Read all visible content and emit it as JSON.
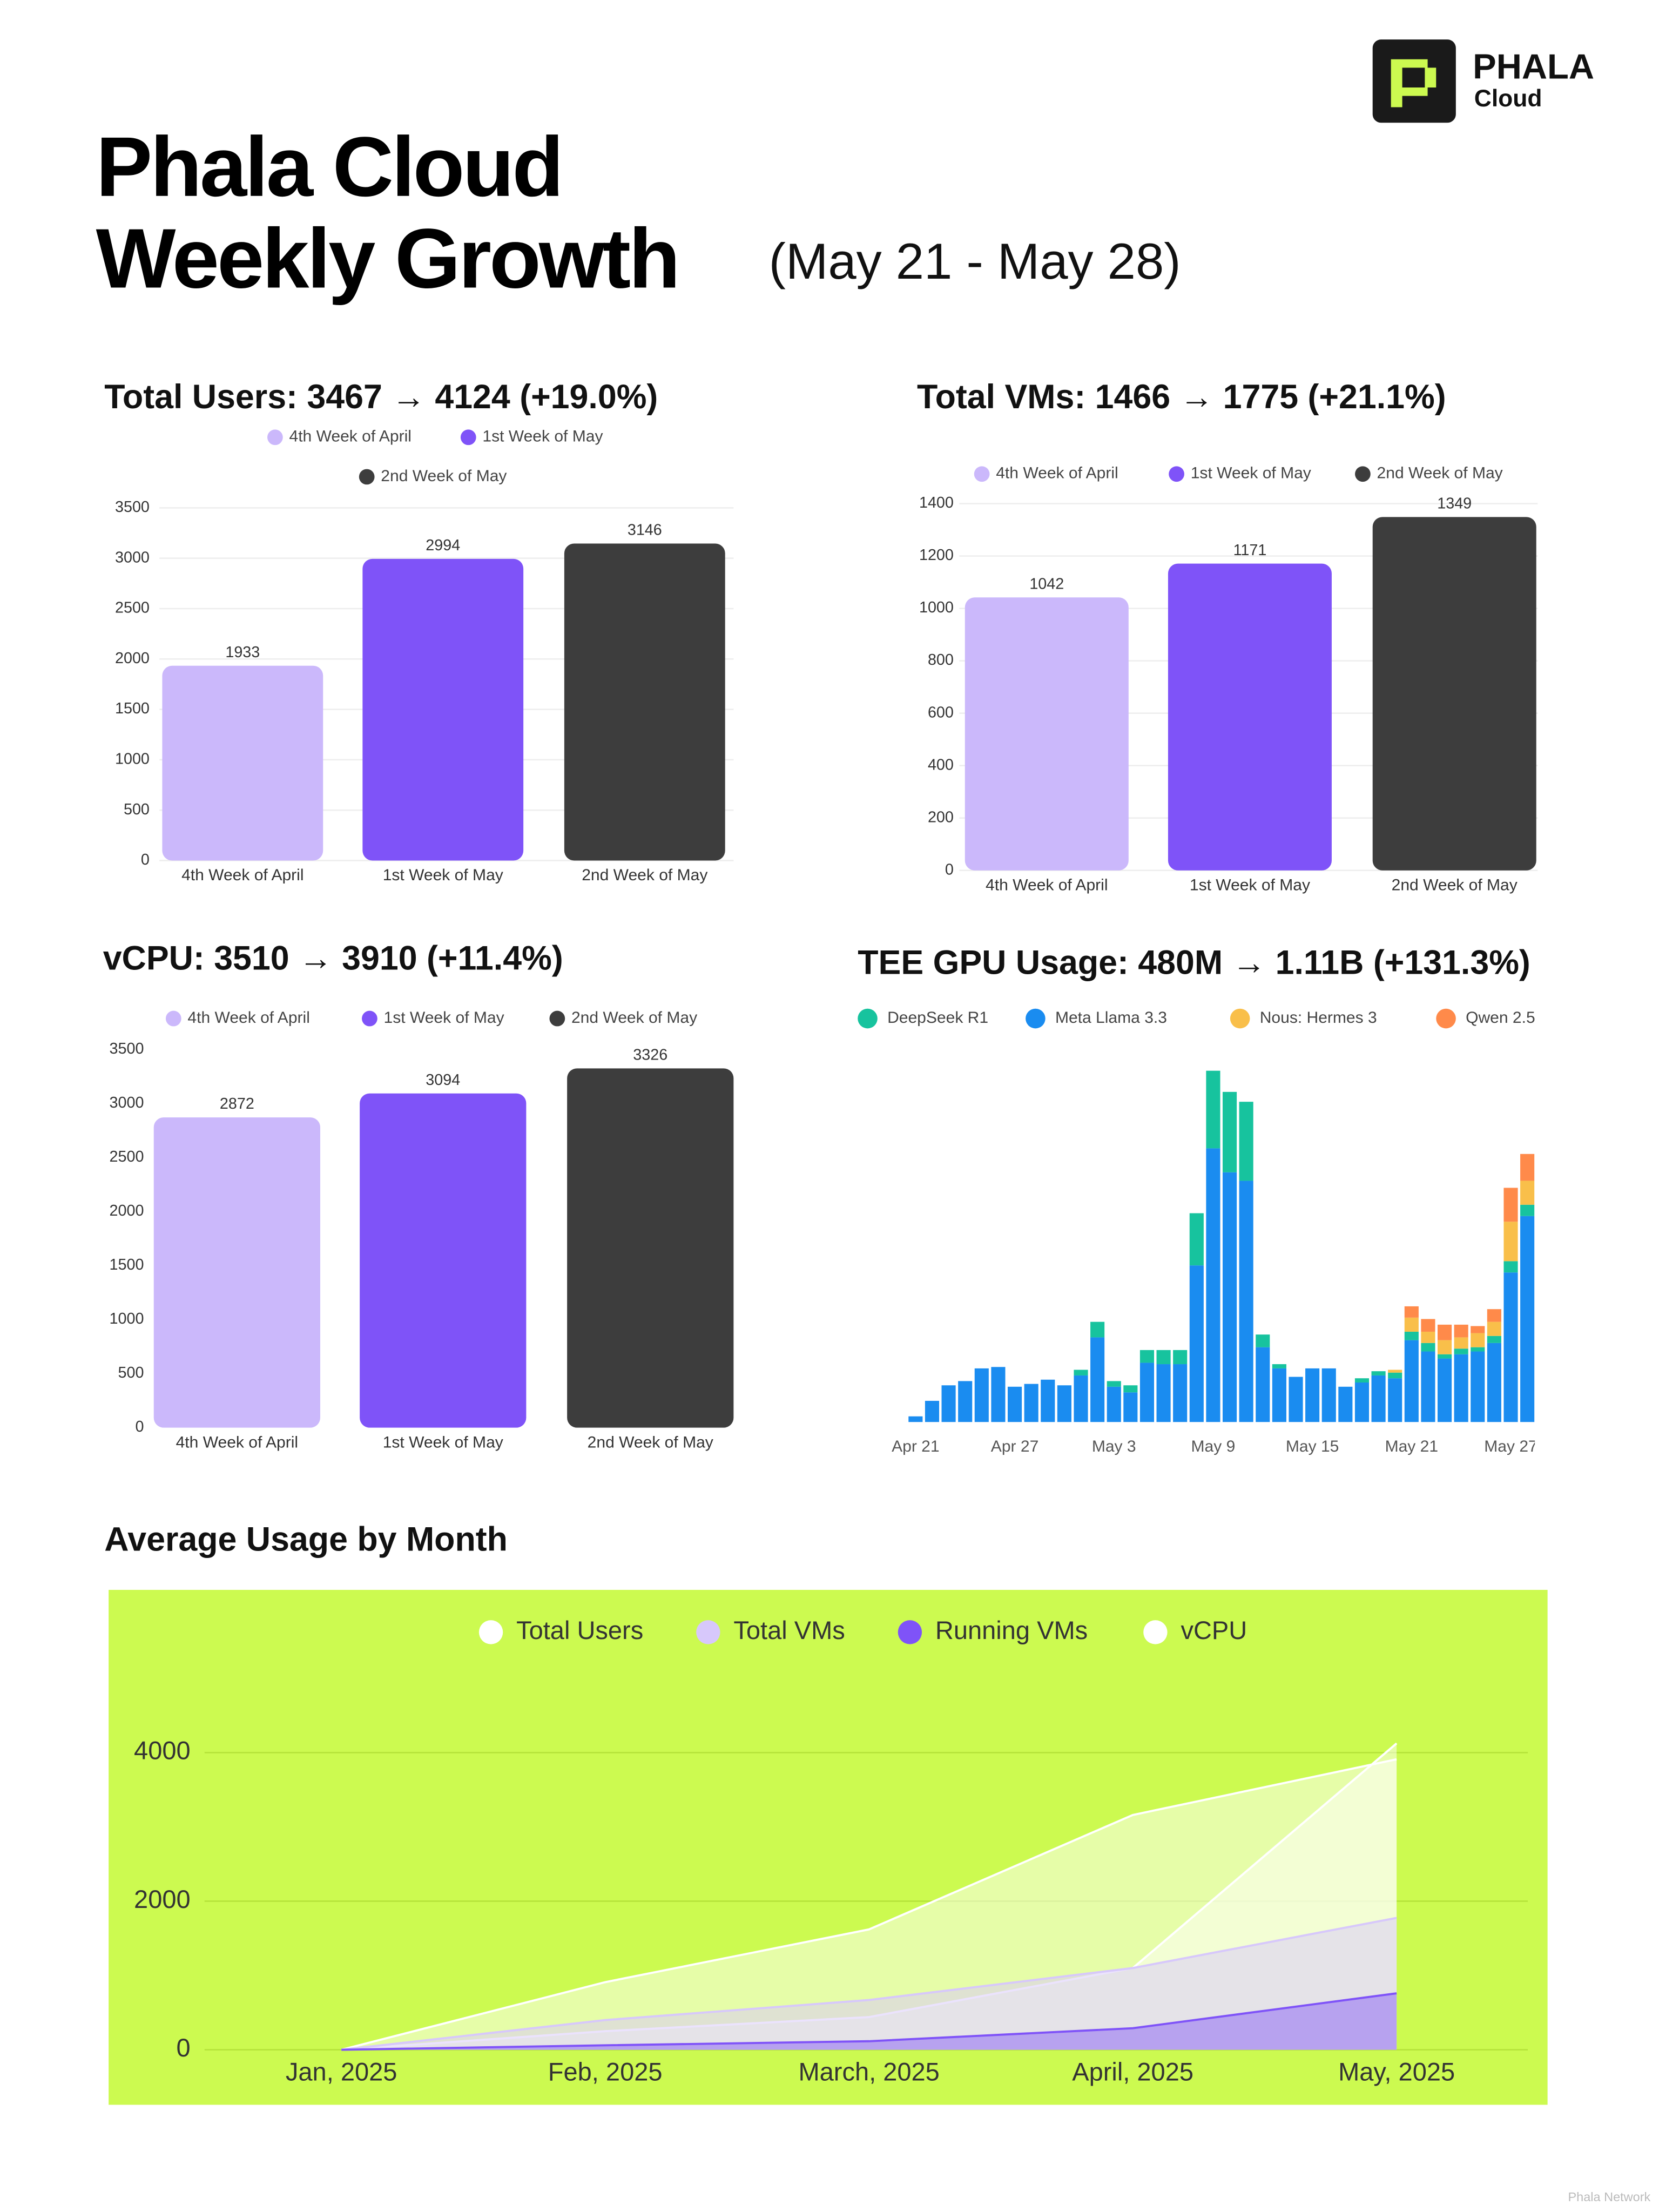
{
  "header": {
    "logo_name": "PHALA",
    "logo_sub": "Cloud",
    "title_line1": "Phala Cloud",
    "title_line2": "Weekly Growth",
    "date_range": "(May 21 - May 28)"
  },
  "chart_data": [
    {
      "type": "bar",
      "title": "Total Users: 3467 → 4124 (+19.0%)",
      "categories": [
        "4th Week of April",
        "1st Week of May",
        "2nd Week of May"
      ],
      "values": [
        1933,
        2994,
        3146
      ],
      "colors": [
        "#cbb8fb",
        "#7f53f8",
        "#3d3d3d"
      ],
      "ylim": [
        0,
        3500
      ],
      "yticks": [
        0,
        500,
        1000,
        1500,
        2000,
        2500,
        3000,
        3500
      ],
      "grid": true,
      "legend": true
    },
    {
      "type": "bar",
      "title": "Total VMs: 1466 → 1775 (+21.1%)",
      "categories": [
        "4th Week of April",
        "1st Week of May",
        "2nd Week of May"
      ],
      "values": [
        1042,
        1171,
        1349
      ],
      "colors": [
        "#cbb8fb",
        "#7f53f8",
        "#3d3d3d"
      ],
      "ylim": [
        0,
        1400
      ],
      "yticks": [
        0,
        200,
        400,
        600,
        800,
        1000,
        1200,
        1400
      ],
      "grid": true,
      "legend": true
    },
    {
      "type": "bar",
      "title": "vCPU: 3510 → 3910 (+11.4%)",
      "categories": [
        "4th Week of April",
        "1st Week of May",
        "2nd Week of May"
      ],
      "values": [
        2872,
        3094,
        3326
      ],
      "colors": [
        "#cbb8fb",
        "#7f53f8",
        "#3d3d3d"
      ],
      "ylim": [
        0,
        3500
      ],
      "yticks": [
        0,
        500,
        1000,
        1500,
        2000,
        2500,
        3000,
        3500
      ],
      "grid": false,
      "legend": true
    },
    {
      "type": "stacked_bar",
      "title": "TEE GPU Usage: 480M → 1.11B (+131.3%)",
      "categories": [
        "Apr 21",
        null,
        null,
        null,
        null,
        null,
        "Apr 27",
        null,
        null,
        null,
        null,
        null,
        "May 3",
        null,
        null,
        null,
        null,
        null,
        "May 9",
        null,
        null,
        null,
        null,
        null,
        "May 15",
        null,
        null,
        null,
        null,
        null,
        "May 21",
        null,
        null,
        null,
        null,
        null,
        "May 27",
        null
      ],
      "series": [
        {
          "name": "DeepSeek R1",
          "color": "#17c39e",
          "values": [
            0,
            0,
            0,
            0,
            0,
            0,
            0,
            0,
            0,
            0,
            4,
            11,
            4,
            5,
            9,
            10,
            10,
            37,
            55,
            57,
            56,
            9,
            3,
            0,
            0,
            0,
            0,
            3,
            3,
            4,
            6,
            6,
            3,
            4,
            3,
            5,
            8,
            8
          ]
        },
        {
          "name": "Meta Llama 3.3",
          "color": "#1a8cf0",
          "values": [
            4,
            15,
            26,
            29,
            38,
            39,
            25,
            27,
            30,
            26,
            33,
            60,
            25,
            21,
            42,
            41,
            41,
            111,
            194,
            177,
            171,
            53,
            38,
            32,
            38,
            38,
            25,
            28,
            33,
            31,
            58,
            50,
            45,
            48,
            50,
            56,
            106,
            146
          ]
        },
        {
          "name": "Nous: Hermes 3",
          "color": "#f9bf4a",
          "values": [
            0,
            0,
            0,
            0,
            0,
            0,
            0,
            0,
            0,
            0,
            0,
            0,
            0,
            0,
            0,
            0,
            0,
            0,
            0,
            0,
            0,
            0,
            0,
            0,
            0,
            0,
            0,
            0,
            0,
            2,
            10,
            8,
            10,
            8,
            10,
            10,
            28,
            17
          ]
        },
        {
          "name": "Qwen 2.5",
          "color": "#ff8a4a",
          "values": [
            0,
            0,
            0,
            0,
            0,
            0,
            0,
            0,
            0,
            0,
            0,
            0,
            0,
            0,
            0,
            0,
            0,
            0,
            0,
            0,
            0,
            0,
            0,
            0,
            0,
            0,
            0,
            0,
            0,
            0,
            8,
            9,
            11,
            9,
            5,
            9,
            24,
            19
          ]
        }
      ],
      "legend": true
    },
    {
      "type": "area",
      "title": "Average Usage by Month",
      "categories": [
        "Jan, 2025",
        "Feb, 2025",
        "March, 2025",
        "April, 2025",
        "May, 2025"
      ],
      "series": [
        {
          "name": "Total Users",
          "color": "#ffffff",
          "values": [
            0,
            250,
            440,
            1100,
            4124
          ]
        },
        {
          "name": "Total VMs",
          "color": "#d7c8fb",
          "values": [
            0,
            400,
            670,
            1100,
            1775
          ]
        },
        {
          "name": "Running VMs",
          "color": "#7f53f8",
          "values": [
            0,
            60,
            115,
            290,
            760
          ]
        },
        {
          "name": "vCPU",
          "color": "#ffffff",
          "values": [
            0,
            910,
            1620,
            3160,
            3910
          ]
        }
      ],
      "ylim": [
        0,
        4500
      ],
      "yticks": [
        0,
        2000,
        4000
      ],
      "grid": true,
      "legend": true,
      "background": "#ccfa50"
    }
  ],
  "watermark": "Phala Network"
}
